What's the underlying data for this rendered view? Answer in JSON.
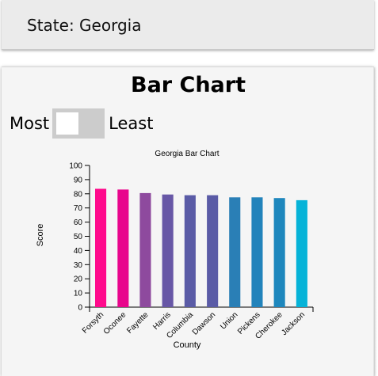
{
  "header": {
    "title": "State: Georgia"
  },
  "main": {
    "heading": "Bar Chart",
    "toggle": {
      "left_label": "Most",
      "right_label": "Least",
      "state": "off"
    }
  },
  "chart_data": {
    "type": "bar",
    "title": "Georgia Bar Chart",
    "xlabel": "County",
    "ylabel": "Score",
    "categories": [
      "Forsyth",
      "Oconee",
      "Fayette",
      "Harris",
      "Columbia",
      "Dawson",
      "Union",
      "Pickens",
      "Cherokee",
      "Jackson"
    ],
    "values": [
      83.5,
      83,
      80.5,
      79.5,
      79,
      79,
      77.5,
      77.5,
      77,
      75.5
    ],
    "colors": [
      "#ff0a8c",
      "#e8068c",
      "#8e4a9e",
      "#6757a6",
      "#5a5ba6",
      "#5a5ba6",
      "#2a7fb6",
      "#2283bb",
      "#1e87bd",
      "#06b3d8"
    ],
    "ylim": [
      0,
      100
    ],
    "yticks": [
      0,
      10,
      20,
      30,
      40,
      50,
      60,
      70,
      80,
      90,
      100
    ],
    "grid": false,
    "legend": "none"
  }
}
